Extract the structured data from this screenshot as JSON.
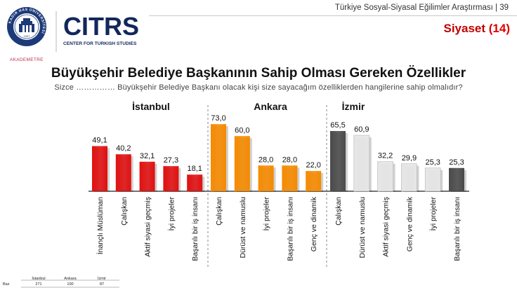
{
  "header": {
    "report_title": "Türkiye Sosyal-Siyasal Eğilimler Araştırması | 39",
    "section": "Siyaset",
    "section_number": "(14)"
  },
  "logos": {
    "university_ring_text": "KADIR HAS ÜNİVERSİTESİ",
    "university_year": "1997",
    "akademetre": "AKADEMETRE",
    "citrs": "CITRS",
    "citrs_subtitle": "CENTER FOR TURKISH STUDIES"
  },
  "title": "Büyükşehir Belediye Başkanının Sahip Olması Gereken Özellikler",
  "question": "Sizce …………… Büyükşehir Belediye Başkanı olacak kişi size sayacağım özelliklerden hangilerine sahip olmalıdır?",
  "colors": {
    "istanbul": "#e01010",
    "ankara": "#f58a00",
    "izmir_dark": "#4a4a4a",
    "izmir_light": "#e6e6e6",
    "section_red": "#c00000",
    "citrs_navy": "#12275b"
  },
  "chart_data": {
    "type": "bar",
    "ylim": [
      0,
      80
    ],
    "groups": [
      {
        "name": "İstanbul",
        "color": "#e01010",
        "categories": [
          "İnançlı Müslüman",
          "Çalışkan",
          "Aktif siyasi geçmiş",
          "İyi projeler",
          "Başarılı bir iş insanı"
        ],
        "values": [
          49.1,
          40.2,
          32.1,
          27.3,
          18.1
        ],
        "labels": [
          "49,1",
          "40,2",
          "32,1",
          "27,3",
          "18,1"
        ]
      },
      {
        "name": "Ankara",
        "color": "#f58a00",
        "categories": [
          "Çalışkan",
          "Dürüst ve namuslu",
          "İyi projeler",
          "Başarılı bir iş insanı",
          "Genç ve dinamik"
        ],
        "values": [
          73.0,
          60.0,
          28.0,
          28.0,
          22.0
        ],
        "labels": [
          "73,0",
          "60,0",
          "28,0",
          "28,0",
          "22,0"
        ]
      },
      {
        "name": "İzmir",
        "colors": [
          "#4a4a4a",
          "#e6e6e6",
          "#e6e6e6",
          "#e6e6e6",
          "#e6e6e6",
          "#4a4a4a"
        ],
        "categories": [
          "Çalışkan",
          "Dürüst ve namuslu",
          "Aktif siyasi geçmiş",
          "Genç ve dinamik",
          "İyi projeler",
          "Başarılı bir iş insanı"
        ],
        "values": [
          65.5,
          60.9,
          32.2,
          29.9,
          25.3,
          25.3
        ],
        "labels": [
          "65,5",
          "60,9",
          "32,2",
          "29,9",
          "25,3",
          "25,3"
        ]
      }
    ]
  },
  "base_table": {
    "row_label": "Baz",
    "columns": [
      "İstanbul",
      "Ankara",
      "İzmir"
    ],
    "values": [
      "271",
      "100",
      "87"
    ]
  }
}
